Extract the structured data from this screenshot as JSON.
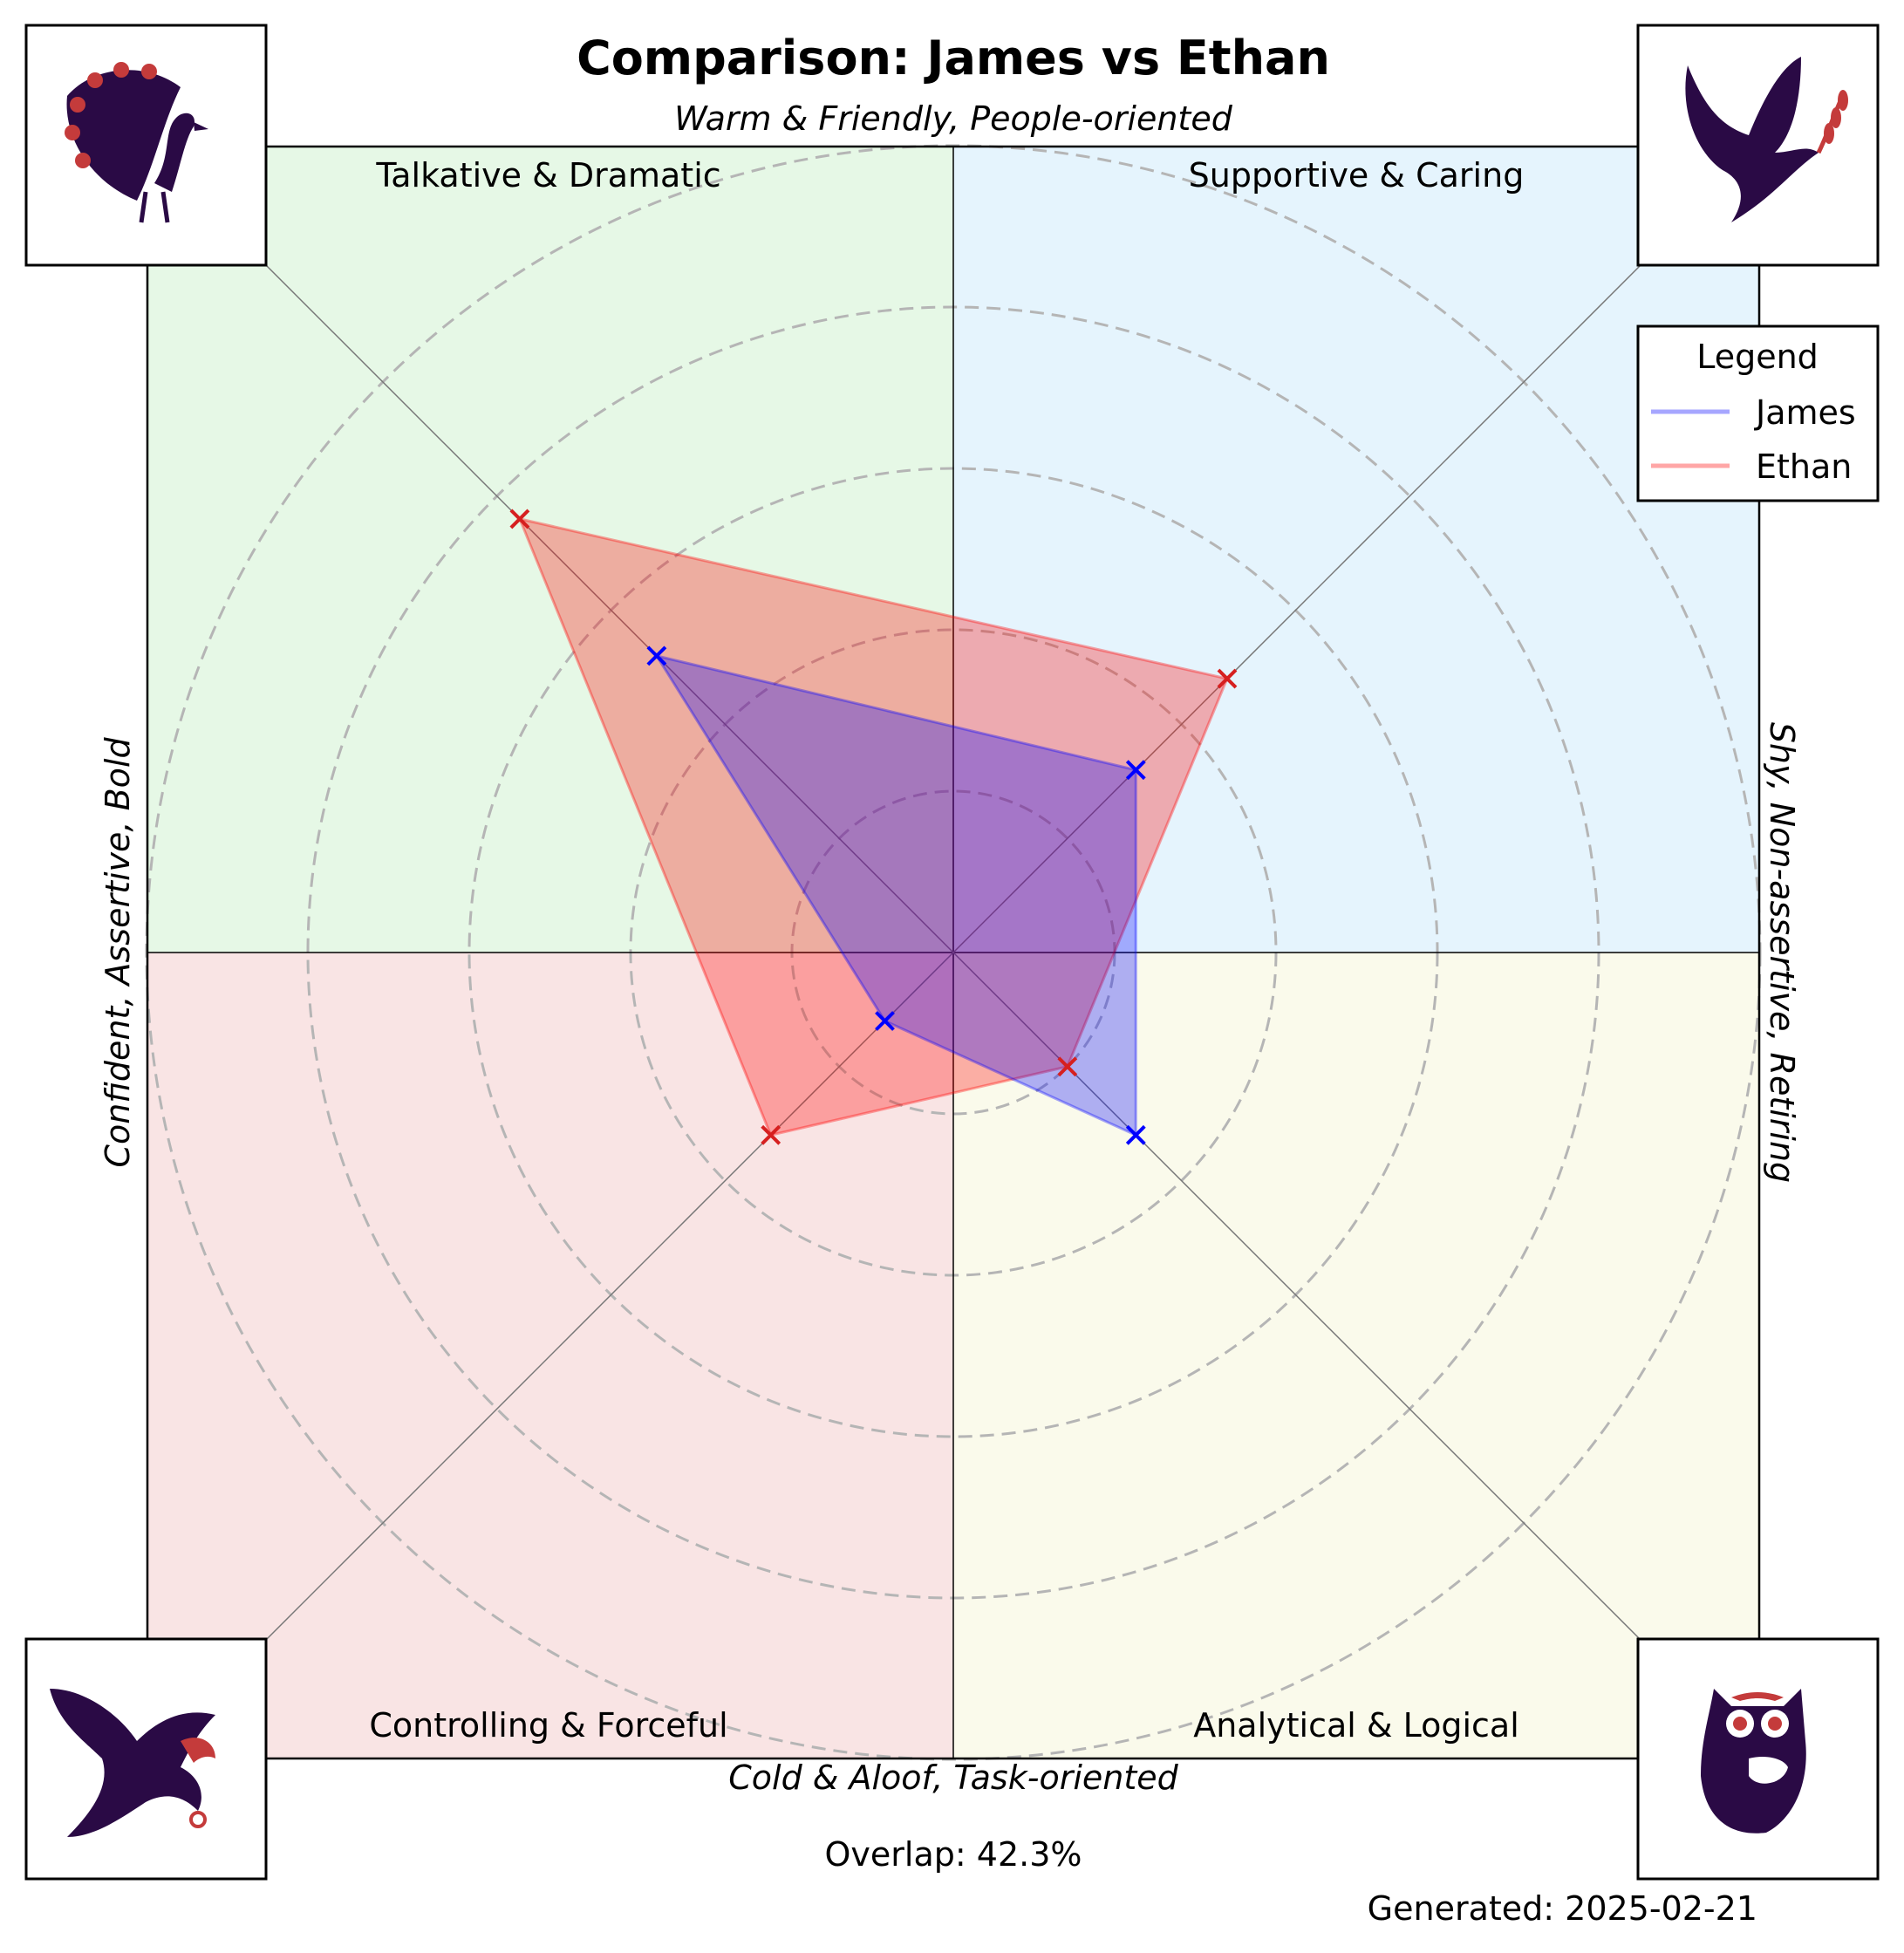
{
  "title": "Comparison: James vs Ethan",
  "axes": {
    "top": "Warm & Friendly, People-oriented",
    "bottom": "Cold & Aloof, Task-oriented",
    "left": "Confident, Assertive, Bold",
    "right": "Shy, Non-assertive, Retiring"
  },
  "quadrants": [
    {
      "label": "Talkative & Dramatic",
      "color": "#e6f8e6",
      "icon": "peacock-icon"
    },
    {
      "label": "Supportive & Caring",
      "color": "#e5f4fd",
      "icon": "dove-icon"
    },
    {
      "label": "Controlling & Forceful",
      "color": "#f9e4e4",
      "icon": "eagle-icon"
    },
    {
      "label": "Analytical & Logical",
      "color": "#fafaeb",
      "icon": "owl-icon"
    }
  ],
  "legend": {
    "title": "Legend",
    "items": [
      {
        "name": "James",
        "color": "#0000ff"
      },
      {
        "name": "Ethan",
        "color": "#ff0000"
      }
    ]
  },
  "overlap_text": "Overlap: 42.3%",
  "generated_text": "Generated: 2025-02-21",
  "chart_data": {
    "type": "radar",
    "axes_order": [
      "Supportive & Caring",
      "Talkative & Dramatic",
      "Controlling & Forceful",
      "Analytical & Logical"
    ],
    "rmax": 5,
    "rings": [
      1,
      2,
      3,
      4,
      5
    ],
    "series": [
      {
        "name": "James",
        "values": [
          1.6,
          2.6,
          0.6,
          1.6
        ],
        "color": "#0000ff"
      },
      {
        "name": "Ethan",
        "values": [
          2.4,
          3.8,
          1.6,
          1.0
        ],
        "color": "#ff0000"
      }
    ]
  }
}
